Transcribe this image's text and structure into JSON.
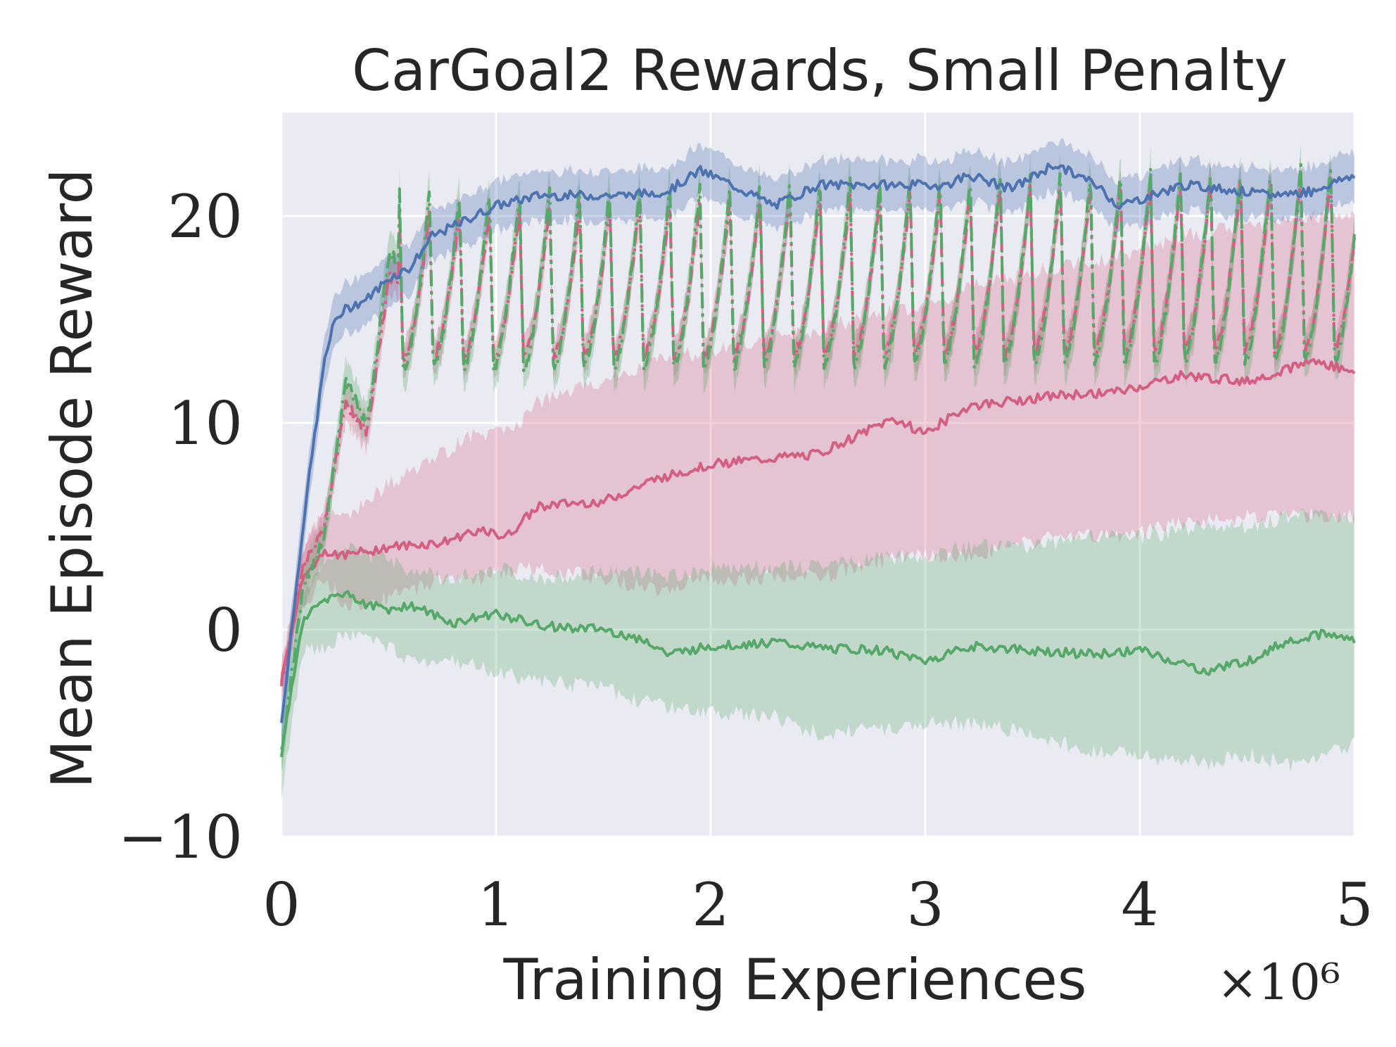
{
  "chart_data": {
    "type": "line",
    "title": "CarGoal2 Rewards, Small Penalty",
    "xlabel": "Training Experiences",
    "ylabel": "Mean Episode Reward",
    "x_multiplier": "×10⁶",
    "xlim": [
      0,
      5
    ],
    "ylim": [
      -10,
      25
    ],
    "xticks": [
      0,
      1,
      2,
      3,
      4,
      5
    ],
    "xtick_labels": [
      "0",
      "1",
      "2",
      "3",
      "4",
      "5"
    ],
    "yticks": [
      -10,
      0,
      10,
      20
    ],
    "ytick_labels": [
      "−10",
      "0",
      "10",
      "20"
    ],
    "grid": true,
    "colors": {
      "background": "#eaeaf2",
      "grid": "#ffffff",
      "blue": "#4c72b0",
      "pink": "#d35f82",
      "green": "#55a868"
    },
    "series": [
      {
        "name": "blue-solid",
        "color": "#4c72b0",
        "style": "solid",
        "x": [
          0,
          0.1,
          0.15,
          0.2,
          0.25,
          0.3,
          0.4,
          0.5,
          0.6,
          0.7,
          0.8,
          0.9,
          1.0,
          1.2,
          1.4,
          1.6,
          1.8,
          1.95,
          2.1,
          2.3,
          2.5,
          2.7,
          2.9,
          3.1,
          3.2,
          3.4,
          3.6,
          3.8,
          3.9,
          4.0,
          4.2,
          4.4,
          4.6,
          4.8,
          5.0
        ],
        "y": [
          -4.5,
          5,
          9,
          13,
          15,
          15.5,
          16,
          17,
          17.5,
          19,
          19.5,
          20,
          20.5,
          21,
          21,
          21,
          21.2,
          22.2,
          21.5,
          20.5,
          21.5,
          21.5,
          21.5,
          21.5,
          22,
          21.3,
          22.5,
          21.5,
          20.5,
          20.8,
          21.5,
          21.3,
          21,
          21.2,
          22
        ],
        "band_width": 1.2
      },
      {
        "name": "pink-solid",
        "color": "#d35f82",
        "style": "solid",
        "x": [
          0,
          0.1,
          0.2,
          0.3,
          0.5,
          0.75,
          0.9,
          1.05,
          1.2,
          1.5,
          1.75,
          2.0,
          2.5,
          2.85,
          3.0,
          3.2,
          3.6,
          3.9,
          4.2,
          4.5,
          4.8,
          5.0
        ],
        "y": [
          -2.5,
          2.5,
          3.8,
          3.6,
          4,
          4.2,
          4.8,
          4.5,
          6,
          6.2,
          7.3,
          8,
          8.5,
          10.2,
          9.5,
          10.8,
          11.3,
          11.5,
          12.3,
          12,
          13,
          12.5
        ],
        "band_low": [
          -3,
          1,
          2.5,
          1.2,
          1.5,
          2.5,
          2.5,
          2.8,
          3,
          2.5,
          2,
          2.5,
          2.5,
          3.5,
          3.5,
          3.5,
          4.5,
          4.5,
          5.2,
          5.5,
          5.5,
          5.5
        ],
        "band_high": [
          -2,
          4,
          5.5,
          5.5,
          7,
          8.5,
          9.5,
          9.5,
          11,
          12,
          13,
          13.5,
          14.5,
          15.5,
          15.5,
          16.5,
          17.5,
          18,
          19,
          19.5,
          20,
          20
        ]
      },
      {
        "name": "green-solid",
        "color": "#55a868",
        "style": "solid",
        "x": [
          0,
          0.1,
          0.2,
          0.3,
          0.4,
          0.5,
          0.6,
          0.8,
          1.0,
          1.2,
          1.5,
          1.7,
          1.8,
          2.0,
          2.3,
          2.5,
          2.8,
          3.0,
          3.2,
          3.5,
          3.8,
          4.0,
          4.3,
          4.5,
          4.7,
          4.85,
          5.0
        ],
        "y": [
          -6,
          0.5,
          1.5,
          1.8,
          1.2,
          1.0,
          1.2,
          0.3,
          0.8,
          0.2,
          0,
          -0.5,
          -1.2,
          -0.8,
          -0.6,
          -0.9,
          -1.0,
          -1.5,
          -0.8,
          -1.0,
          -1.2,
          -1.0,
          -2.0,
          -1.5,
          -0.5,
          -0.2,
          -0.5
        ],
        "band_low": [
          -8,
          -1,
          -1,
          -0.2,
          -0.5,
          -0.8,
          -1.5,
          -1.5,
          -2,
          -2.5,
          -2.8,
          -3.5,
          -3.7,
          -4,
          -4.2,
          -5,
          -4.8,
          -4.5,
          -4.5,
          -5,
          -6,
          -6,
          -6.5,
          -6,
          -6.5,
          -6,
          -5.5
        ],
        "band_high": [
          -4,
          2,
          3,
          4,
          3.5,
          3.5,
          2.8,
          2.5,
          3,
          2.5,
          2.8,
          2.8,
          2.5,
          3,
          3,
          3,
          3.5,
          3.5,
          4,
          4,
          4.5,
          4.5,
          5,
          5,
          5.5,
          5.5,
          5.5
        ]
      },
      {
        "name": "pink-dashdot",
        "color": "#d35f82",
        "style": "dashdot",
        "pattern": "oscillating",
        "period": 0.14,
        "x_start": 0.55,
        "ramp_x": [
          0,
          0.1,
          0.2,
          0.3,
          0.4,
          0.5
        ],
        "ramp_y": [
          -2.5,
          3,
          5,
          11,
          9.5,
          17
        ],
        "low": [
          13,
          13.5
        ],
        "high": [
          20,
          22
        ],
        "band_width": 0.9
      },
      {
        "name": "green-dashdot",
        "color": "#55a868",
        "style": "dashdot",
        "pattern": "oscillating",
        "period": 0.14,
        "x_start": 0.55,
        "ramp_x": [
          0,
          0.1,
          0.2,
          0.3,
          0.4,
          0.5
        ],
        "ramp_y": [
          -6,
          2,
          4.5,
          12,
          10,
          18
        ],
        "low": [
          12.5,
          13
        ],
        "high": [
          21,
          22.5
        ],
        "band_width": 1.0
      }
    ]
  }
}
